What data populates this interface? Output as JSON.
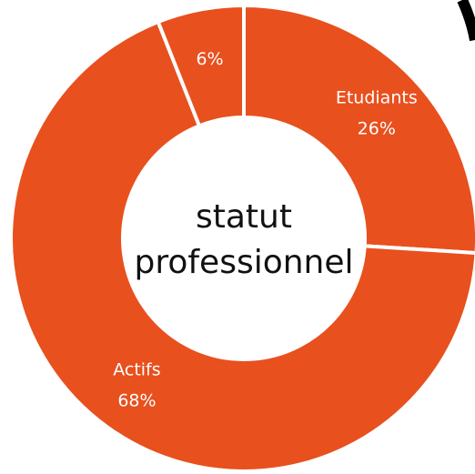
{
  "chart_data": {
    "type": "donut",
    "categories": [
      "Etudiants",
      "Actifs",
      null
    ],
    "values": [
      26,
      68,
      6
    ],
    "value_labels": [
      "26%",
      "68%",
      "6%"
    ],
    "color": "#e8501e",
    "annotations": [
      "statut",
      "professionnel"
    ]
  }
}
